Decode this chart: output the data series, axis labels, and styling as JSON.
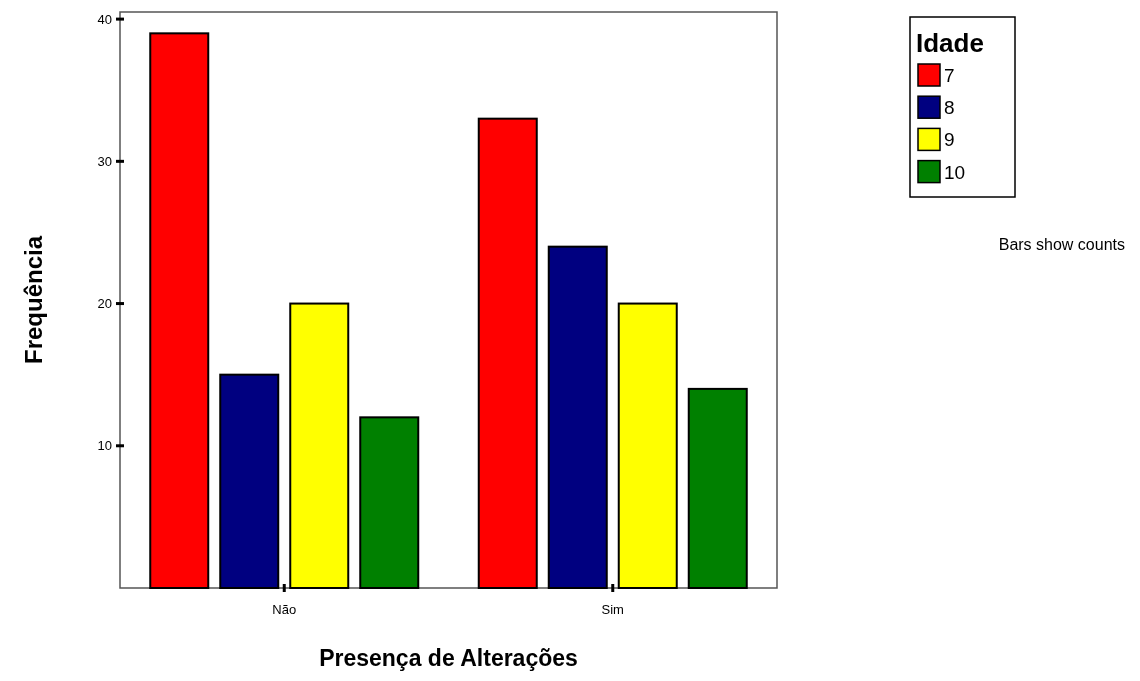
{
  "chart_data": {
    "type": "bar",
    "xlabel": "Presença de Alterações",
    "ylabel": "Frequência",
    "legend_title": "Idade",
    "categories": [
      "Não",
      "Sim"
    ],
    "series": [
      {
        "name": "7",
        "color": "#ff0000",
        "values": [
          39,
          33
        ]
      },
      {
        "name": "8",
        "color": "#000080",
        "values": [
          15,
          24
        ]
      },
      {
        "name": "9",
        "color": "#ffff00",
        "values": [
          20,
          20
        ]
      },
      {
        "name": "10",
        "color": "#008000",
        "values": [
          12,
          14
        ]
      }
    ],
    "ylim": [
      0,
      40.5
    ],
    "yticks": [
      10,
      20,
      30,
      40
    ],
    "grid": false,
    "legend": "top right",
    "annotations": [
      "Bars show counts"
    ]
  }
}
